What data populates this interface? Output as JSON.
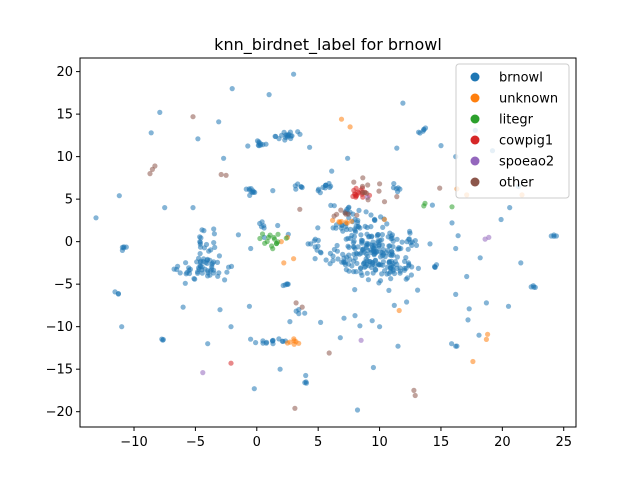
{
  "chart_data": {
    "type": "scatter",
    "title": "knn_birdnet_label for brnowl",
    "xlabel": "",
    "ylabel": "",
    "xlim": [
      -14.4,
      26.0
    ],
    "ylim": [
      -21.8,
      21.6
    ],
    "xticks": [
      -10,
      -5,
      0,
      5,
      10,
      15,
      20,
      25
    ],
    "yticks": [
      -20,
      -15,
      -10,
      -5,
      0,
      5,
      10,
      15,
      20
    ],
    "grid": false,
    "legend_position": "top-right",
    "series": [
      {
        "name": "brnowl",
        "color": "#1f77b4",
        "clusters": [
          {
            "cx": 9.6,
            "cy": -1.5,
            "sx": 1.4,
            "sy": 1.6,
            "n": 170
          },
          {
            "cx": 8.4,
            "cy": 1.6,
            "sx": 1.3,
            "sy": 1.0,
            "n": 45
          },
          {
            "cx": -4.5,
            "cy": -3.3,
            "sx": 0.9,
            "sy": 0.7,
            "n": 45
          },
          {
            "cx": -3.6,
            "cy": -1.7,
            "sx": 0.7,
            "sy": 1.2,
            "n": 18
          },
          {
            "cx": -4.2,
            "cy": 0.7,
            "sx": 0.6,
            "sy": 0.4,
            "n": 8
          },
          {
            "cx": 2.5,
            "cy": 12.5,
            "sx": 0.4,
            "sy": 0.4,
            "n": 18
          },
          {
            "cx": 0.3,
            "cy": 11.5,
            "sx": 0.4,
            "sy": 0.3,
            "n": 10
          },
          {
            "cx": 1.2,
            "cy": -11.7,
            "sx": 0.7,
            "sy": 0.3,
            "n": 14
          },
          {
            "cx": -0.4,
            "cy": 5.9,
            "sx": 0.3,
            "sy": 0.3,
            "n": 10
          },
          {
            "cx": 13.5,
            "cy": 13.1,
            "sx": 0.2,
            "sy": 0.2,
            "n": 6
          },
          {
            "cx": 3.3,
            "cy": 6.4,
            "sx": 0.3,
            "sy": 0.2,
            "n": 6
          },
          {
            "cx": 5.6,
            "cy": 6.3,
            "sx": 0.6,
            "sy": 0.3,
            "n": 10
          },
          {
            "cx": 11.3,
            "cy": 6.3,
            "sx": 0.3,
            "sy": 0.2,
            "n": 6
          },
          {
            "cx": -11.0,
            "cy": -0.7,
            "sx": 0.2,
            "sy": 0.2,
            "n": 5
          },
          {
            "cx": 2.4,
            "cy": -5.0,
            "sx": 0.2,
            "sy": 0.2,
            "n": 5
          },
          {
            "cx": 4.2,
            "cy": -16.3,
            "sx": 0.2,
            "sy": 0.2,
            "n": 4
          },
          {
            "cx": -11.4,
            "cy": -6.0,
            "sx": 0.1,
            "sy": 0.1,
            "n": 3
          },
          {
            "cx": 24.2,
            "cy": 0.8,
            "sx": 0.2,
            "sy": 0.2,
            "n": 4
          },
          {
            "cx": 22.5,
            "cy": -5.3,
            "sx": 0.2,
            "sy": 0.1,
            "n": 4
          },
          {
            "cx": 16.1,
            "cy": -12.1,
            "sx": 0.2,
            "sy": 0.2,
            "n": 3
          },
          {
            "cx": -7.5,
            "cy": -11.5,
            "sx": 0.2,
            "sy": 0.1,
            "n": 3
          },
          {
            "cx": 14.8,
            "cy": -2.9,
            "sx": 0.2,
            "sy": 0.1,
            "n": 3
          },
          {
            "cx": 3.7,
            "cy": -8.3,
            "sx": 0.3,
            "sy": 0.3,
            "n": 4
          },
          {
            "cx": 0.5,
            "cy": 2.0,
            "sx": 0.3,
            "sy": 0.3,
            "n": 5
          },
          {
            "cx": 12.5,
            "cy": 0.0,
            "sx": 0.6,
            "sy": 0.4,
            "n": 10
          },
          {
            "cx": 7.0,
            "cy": -2.6,
            "sx": 0.6,
            "sy": 0.5,
            "n": 12
          },
          {
            "cx": 7.5,
            "cy": 3.5,
            "sx": 0.8,
            "sy": 0.4,
            "n": 12
          },
          {
            "cx": 5.0,
            "cy": -0.2,
            "sx": 0.9,
            "sy": 1.0,
            "n": 14
          },
          {
            "cx": 12.0,
            "cy": -3.0,
            "sx": 0.7,
            "sy": 0.7,
            "n": 12
          }
        ],
        "points": [
          [
            3.0,
            19.7
          ],
          [
            -2.0,
            18.0
          ],
          [
            1.0,
            17.3
          ],
          [
            11.9,
            16.3
          ],
          [
            -7.9,
            15.2
          ],
          [
            -8.6,
            12.8
          ],
          [
            -3.1,
            14.1
          ],
          [
            4.3,
            11.1
          ],
          [
            6.1,
            8.3
          ],
          [
            -4.8,
            12.1
          ],
          [
            7.4,
            9.8
          ],
          [
            11.4,
            11.0
          ],
          [
            -2.7,
            9.8
          ],
          [
            5.0,
            6.0
          ],
          [
            1.3,
            6.0
          ],
          [
            -11.2,
            5.4
          ],
          [
            -13.1,
            2.8
          ],
          [
            -5.2,
            4.0
          ],
          [
            -7.5,
            4.0
          ],
          [
            1.7,
            1.9
          ],
          [
            -0.5,
            -0.8
          ],
          [
            -2.3,
            -3.0
          ],
          [
            -6.0,
            -7.7
          ],
          [
            -3.0,
            -8.0
          ],
          [
            -0.6,
            -7.6
          ],
          [
            -2.1,
            -10.0
          ],
          [
            2.7,
            -9.4
          ],
          [
            -11.0,
            -10.0
          ],
          [
            -4.0,
            -12.0
          ],
          [
            -0.2,
            -17.3
          ],
          [
            1.9,
            -15.0
          ],
          [
            5.2,
            -9.5
          ],
          [
            6.8,
            -11.3
          ],
          [
            7.1,
            -9.0
          ],
          [
            8.0,
            -8.7
          ],
          [
            9.4,
            -9.3
          ],
          [
            10.0,
            -10.0
          ],
          [
            8.4,
            -9.9
          ],
          [
            9.5,
            -14.8
          ],
          [
            11.5,
            -12.3
          ],
          [
            8.2,
            -19.8
          ],
          [
            11.2,
            -7.5
          ],
          [
            12.2,
            -7.1
          ],
          [
            16.2,
            -6.2
          ],
          [
            17.3,
            -7.9
          ],
          [
            20.5,
            -7.6
          ],
          [
            18.7,
            -7.2
          ],
          [
            18.1,
            -11.0
          ],
          [
            17.2,
            -9.2
          ],
          [
            17.8,
            13.1
          ],
          [
            19.2,
            10.7
          ],
          [
            16.2,
            10.0
          ],
          [
            14.3,
            4.3
          ],
          [
            15.9,
            2.2
          ],
          [
            16.4,
            0.7
          ],
          [
            18.2,
            -1.9
          ],
          [
            16.2,
            -0.8
          ],
          [
            21.5,
            -2.5
          ],
          [
            20.6,
            4.0
          ],
          [
            19.9,
            2.6
          ],
          [
            21.3,
            6.5
          ],
          [
            15.0,
            11.3
          ],
          [
            17.1,
            -4.1
          ],
          [
            14.5,
            -3.0
          ],
          [
            13.1,
            -5.7
          ],
          [
            11.1,
            -3.3
          ],
          [
            0.6,
            0.5
          ],
          [
            -1.5,
            0.8
          ]
        ]
      },
      {
        "name": "unknown",
        "color": "#ff7f0e",
        "clusters": [
          {
            "cx": 3.0,
            "cy": -11.7,
            "sx": 0.4,
            "sy": 0.2,
            "n": 7
          },
          {
            "cx": 7.2,
            "cy": 2.4,
            "sx": 0.5,
            "sy": 0.2,
            "n": 7
          }
        ],
        "points": [
          [
            6.9,
            14.4
          ],
          [
            7.6,
            13.5
          ],
          [
            3.0,
            -2.0
          ],
          [
            2.2,
            -2.5
          ],
          [
            2.5,
            0.5
          ],
          [
            11.6,
            -8.1
          ],
          [
            16.3,
            6.2
          ],
          [
            17.1,
            5.5
          ],
          [
            21.6,
            5.5
          ],
          [
            18.8,
            -10.9
          ],
          [
            18.7,
            -11.5
          ],
          [
            17.6,
            -14.1
          ],
          [
            2.0,
            0.0
          ],
          [
            10.4,
            2.6
          ]
        ]
      },
      {
        "name": "litegr",
        "color": "#2ca02c",
        "clusters": [
          {
            "cx": 1.2,
            "cy": 0.0,
            "sx": 0.4,
            "sy": 0.5,
            "n": 14
          }
        ],
        "points": [
          [
            13.7,
            4.5
          ],
          [
            13.6,
            4.2
          ],
          [
            2.4,
            0.4
          ],
          [
            15.9,
            4.1
          ]
        ]
      },
      {
        "name": "cowpig1",
        "color": "#d62728",
        "clusters": [
          {
            "cx": 8.3,
            "cy": 5.8,
            "sx": 0.3,
            "sy": 0.4,
            "n": 16
          }
        ],
        "points": [
          [
            -2.1,
            -14.3
          ],
          [
            8.6,
            6.3
          ]
        ]
      },
      {
        "name": "spoeao2",
        "color": "#9467bd",
        "clusters": [],
        "points": [
          [
            -4.4,
            -15.4
          ],
          [
            8.5,
            -11.6
          ],
          [
            18.9,
            0.5
          ],
          [
            18.6,
            0.3
          ],
          [
            9.0,
            5.2
          ]
        ]
      },
      {
        "name": "other",
        "color": "#8c564b",
        "clusters": [
          {
            "cx": 8.9,
            "cy": 6.0,
            "sx": 0.4,
            "sy": 0.5,
            "n": 8
          },
          {
            "cx": 7.4,
            "cy": 3.2,
            "sx": 0.6,
            "sy": 0.3,
            "n": 6
          }
        ],
        "points": [
          [
            -5.2,
            14.7
          ],
          [
            -8.7,
            8.0
          ],
          [
            -8.5,
            8.5
          ],
          [
            -8.3,
            8.9
          ],
          [
            -2.9,
            7.9
          ],
          [
            -2.5,
            7.8
          ],
          [
            3.5,
            3.8
          ],
          [
            10.4,
            4.7
          ],
          [
            10.0,
            6.8
          ],
          [
            11.4,
            5.3
          ],
          [
            3.2,
            -7.2
          ],
          [
            3.7,
            -7.7
          ],
          [
            3.1,
            -19.6
          ],
          [
            5.9,
            -13.1
          ],
          [
            12.8,
            -17.5
          ],
          [
            12.9,
            -18.1
          ],
          [
            14.9,
            6.3
          ],
          [
            7.9,
            7.0
          ],
          [
            6.3,
            3.0
          ]
        ]
      }
    ]
  }
}
